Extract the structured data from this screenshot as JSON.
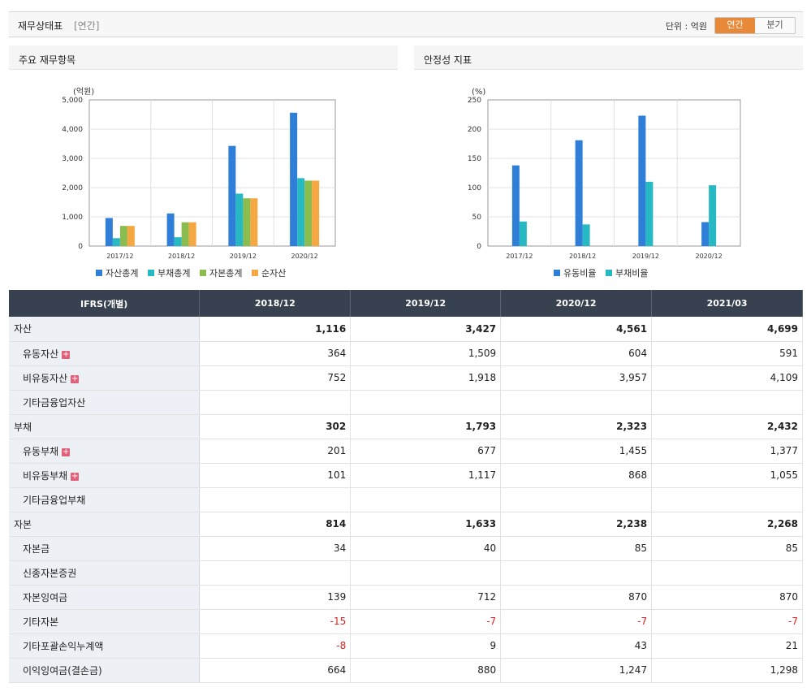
{
  "header": {
    "title": "재무상태표",
    "period": "[연간]",
    "unit": "단위 : 억원",
    "tab_annual": "연간",
    "tab_quarter": "분기"
  },
  "left_panel": {
    "title": "주요 재무항목"
  },
  "right_panel": {
    "title": "안정성 지표"
  },
  "chart_data": [
    {
      "type": "bar",
      "ylabel": "(억원)",
      "ylim": [
        0,
        5000
      ],
      "yticks": [
        "0",
        "1,000",
        "2,000",
        "3,000",
        "4,000",
        "5,000"
      ],
      "categories": [
        "2017/12",
        "2018/12",
        "2019/12",
        "2020/12"
      ],
      "series": [
        {
          "name": "자산총계",
          "color": "#2f7ed8",
          "values": [
            960,
            1116,
            3427,
            4561
          ]
        },
        {
          "name": "부채총계",
          "color": "#26b9c3",
          "values": [
            270,
            302,
            1793,
            2323
          ]
        },
        {
          "name": "자본총계",
          "color": "#8bbc4f",
          "values": [
            690,
            814,
            1633,
            2238
          ]
        },
        {
          "name": "순자산",
          "color": "#f5a742",
          "values": [
            690,
            814,
            1633,
            2238
          ]
        }
      ]
    },
    {
      "type": "bar",
      "ylabel": "(%)",
      "ylim": [
        0,
        250
      ],
      "yticks": [
        "0",
        "50",
        "100",
        "150",
        "200",
        "250"
      ],
      "categories": [
        "2017/12",
        "2018/12",
        "2019/12",
        "2020/12"
      ],
      "series": [
        {
          "name": "유동비율",
          "color": "#2f7ed8",
          "values": [
            138,
            181,
            223,
            41
          ]
        },
        {
          "name": "부채비율",
          "color": "#26b9c3",
          "values": [
            42,
            37,
            110,
            104
          ]
        }
      ]
    }
  ],
  "table": {
    "header": [
      "IFRS(개별)",
      "2018/12",
      "2019/12",
      "2020/12",
      "2021/03"
    ],
    "rows": [
      {
        "label": "자산",
        "type": "main",
        "values": [
          "1,116",
          "3,427",
          "4,561",
          "4,699"
        ]
      },
      {
        "label": "유동자산",
        "type": "sub",
        "plus": "+",
        "values": [
          "364",
          "1,509",
          "604",
          "591"
        ]
      },
      {
        "label": "비유동자산",
        "type": "sub",
        "plus": "+",
        "values": [
          "752",
          "1,918",
          "3,957",
          "4,109"
        ]
      },
      {
        "label": "기타금융업자산",
        "type": "sub",
        "values": [
          "",
          "",
          "",
          ""
        ]
      },
      {
        "label": "부채",
        "type": "main",
        "values": [
          "302",
          "1,793",
          "2,323",
          "2,432"
        ]
      },
      {
        "label": "유동부채",
        "type": "sub",
        "plus": "+",
        "values": [
          "201",
          "677",
          "1,455",
          "1,377"
        ]
      },
      {
        "label": "비유동부채",
        "type": "sub",
        "plus": "+",
        "values": [
          "101",
          "1,117",
          "868",
          "1,055"
        ]
      },
      {
        "label": "기타금융업부채",
        "type": "sub",
        "values": [
          "",
          "",
          "",
          ""
        ]
      },
      {
        "label": "자본",
        "type": "main",
        "values": [
          "814",
          "1,633",
          "2,238",
          "2,268"
        ]
      },
      {
        "label": "자본금",
        "type": "sub",
        "values": [
          "34",
          "40",
          "85",
          "85"
        ]
      },
      {
        "label": "신종자본증권",
        "type": "sub",
        "values": [
          "",
          "",
          "",
          ""
        ]
      },
      {
        "label": "자본잉여금",
        "type": "sub",
        "values": [
          "139",
          "712",
          "870",
          "870"
        ]
      },
      {
        "label": "기타자본",
        "type": "sub",
        "values": [
          "-15",
          "-7",
          "-7",
          "-7"
        ]
      },
      {
        "label": "기타포괄손익누계액",
        "type": "sub",
        "values": [
          "-8",
          "9",
          "43",
          "21"
        ]
      },
      {
        "label": "이익잉여금(결손금)",
        "type": "sub",
        "values": [
          "664",
          "880",
          "1,247",
          "1,298"
        ]
      }
    ]
  }
}
